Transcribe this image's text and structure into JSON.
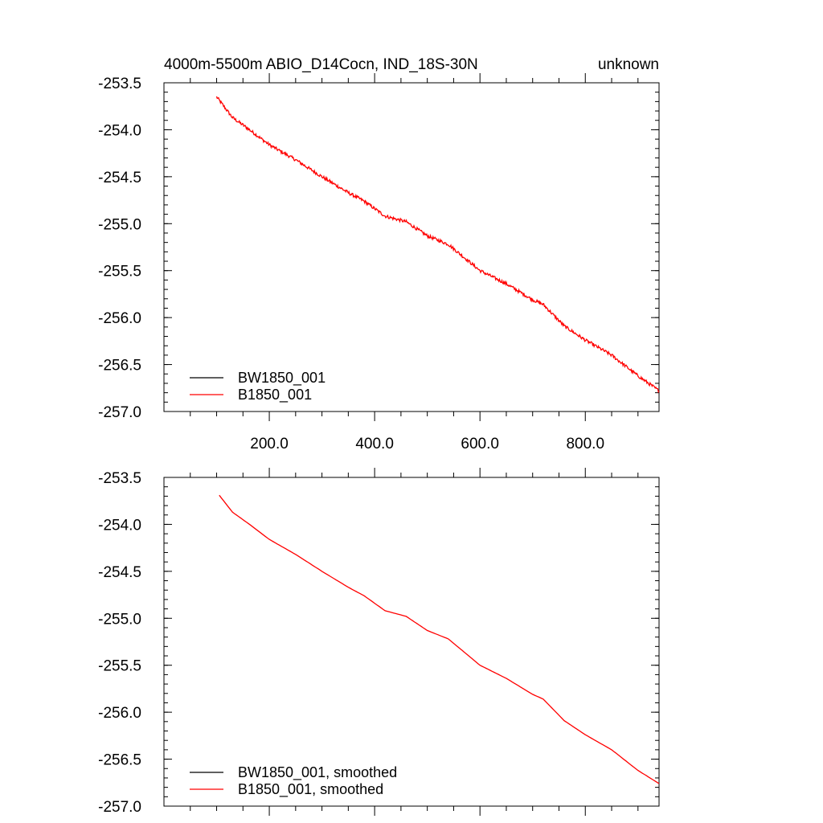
{
  "chart_data": [
    {
      "type": "line",
      "title_left": "4000m-5500m ABIO_D14Cocn, IND_18S-30N",
      "title_right": "unknown",
      "xlabel": "",
      "ylabel": "",
      "xlim": [
        0,
        940
      ],
      "ylim": [
        -257.0,
        -253.5
      ],
      "x_tick_labels": [
        "200.0",
        "400.0",
        "600.0",
        "800.0"
      ],
      "x_ticks": [
        200,
        400,
        600,
        800
      ],
      "y_tick_labels": [
        "-253.5",
        "-254.0",
        "-254.5",
        "-255.0",
        "-255.5",
        "-256.0",
        "-256.5",
        "-257.0"
      ],
      "y_ticks": [
        -253.5,
        -254.0,
        -254.5,
        -255.0,
        -255.5,
        -256.0,
        -256.5,
        -257.0
      ],
      "grid": false,
      "legend_position": "bottom-left",
      "series": [
        {
          "name": "BW1850_001",
          "color": "#000000",
          "x": [],
          "y": []
        },
        {
          "name": "B1850_001",
          "color": "#ff0000",
          "noisy": true,
          "x": [
            100,
            130,
            160,
            200,
            250,
            300,
            350,
            380,
            420,
            460,
            500,
            540,
            570,
            600,
            650,
            700,
            720,
            760,
            800,
            850,
            900,
            940
          ],
          "y": [
            -253.65,
            -253.87,
            -253.99,
            -254.16,
            -254.32,
            -254.5,
            -254.67,
            -254.76,
            -254.92,
            -254.98,
            -255.13,
            -255.22,
            -255.36,
            -255.5,
            -255.64,
            -255.81,
            -255.86,
            -256.09,
            -256.24,
            -256.4,
            -256.62,
            -256.78
          ]
        }
      ]
    },
    {
      "type": "line",
      "title_left": "",
      "title_right": "",
      "xlabel": "",
      "ylabel": "",
      "xlim": [
        0,
        940
      ],
      "ylim": [
        -257.0,
        -253.5
      ],
      "x_ticks": [
        200,
        400,
        600,
        800
      ],
      "y_tick_labels": [
        "-253.5",
        "-254.0",
        "-254.5",
        "-255.0",
        "-255.5",
        "-256.0",
        "-256.5",
        "-257.0"
      ],
      "y_ticks": [
        -253.5,
        -254.0,
        -254.5,
        -255.0,
        -255.5,
        -256.0,
        -256.5,
        -257.0
      ],
      "grid": false,
      "legend_position": "bottom-left",
      "series": [
        {
          "name": "BW1850_001, smoothed",
          "color": "#000000",
          "x": [],
          "y": []
        },
        {
          "name": "B1850_001, smoothed",
          "color": "#ff0000",
          "noisy": false,
          "x": [
            105,
            130,
            160,
            200,
            250,
            300,
            350,
            380,
            420,
            460,
            500,
            540,
            570,
            600,
            650,
            700,
            720,
            760,
            800,
            850,
            900,
            940
          ],
          "y": [
            -253.69,
            -253.87,
            -253.99,
            -254.16,
            -254.32,
            -254.5,
            -254.67,
            -254.76,
            -254.92,
            -254.98,
            -255.13,
            -255.22,
            -255.36,
            -255.5,
            -255.64,
            -255.81,
            -255.86,
            -256.09,
            -256.24,
            -256.4,
            -256.62,
            -256.76
          ]
        }
      ]
    }
  ]
}
